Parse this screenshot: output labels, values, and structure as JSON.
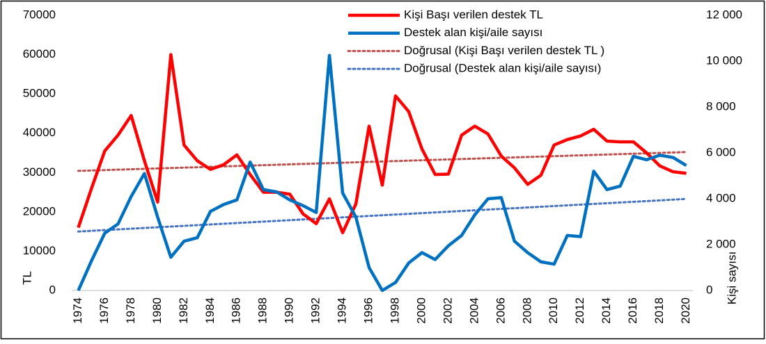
{
  "chart_data": {
    "type": "line",
    "y_label": "TL",
    "y2_label": "Kişi sayısı",
    "x": [
      1974,
      1975,
      1976,
      1977,
      1978,
      1979,
      1980,
      1981,
      1982,
      1983,
      1984,
      1985,
      1986,
      1987,
      1988,
      1989,
      1990,
      1991,
      1992,
      1993,
      1994,
      1995,
      1996,
      1997,
      1998,
      1999,
      2000,
      2001,
      2002,
      2003,
      2004,
      2005,
      2006,
      2007,
      2008,
      2009,
      2010,
      2011,
      2012,
      2013,
      2014,
      2015,
      2016,
      2017,
      2018,
      2019,
      2020
    ],
    "xlim": [
      1973.5,
      2020.5
    ],
    "xticks": [
      1974,
      1976,
      1978,
      1980,
      1982,
      1984,
      1986,
      1988,
      1990,
      1992,
      1994,
      1996,
      1998,
      2000,
      2002,
      2004,
      2006,
      2008,
      2010,
      2012,
      2014,
      2016,
      2018,
      2020
    ],
    "ylim": [
      0,
      70000
    ],
    "yticks": [
      0,
      10000,
      20000,
      30000,
      40000,
      50000,
      60000,
      70000
    ],
    "y2lim": [
      0,
      12000
    ],
    "y2ticks": [
      0,
      {
        "value": 2000,
        "label": "2 000"
      },
      {
        "value": 4000,
        "label": "4 000"
      },
      {
        "value": 6000,
        "label": "6 000"
      },
      {
        "value": 8000,
        "label": "8 000"
      },
      {
        "value": 10000,
        "label": "10 000"
      },
      {
        "value": 12000,
        "label": "12 000"
      }
    ],
    "series": [
      {
        "name": "Kişi Başı verilen destek TL",
        "color": "#ff0000",
        "values": [
          16000,
          26000,
          35500,
          39500,
          44500,
          33000,
          22500,
          60000,
          37000,
          33000,
          30800,
          32000,
          34500,
          29500,
          25000,
          25000,
          24500,
          19500,
          17000,
          23300,
          14700,
          22000,
          41800,
          26800,
          49500,
          45500,
          36000,
          29500,
          29600,
          39500,
          41800,
          39800,
          34200,
          31200,
          27000,
          29300,
          37000,
          38400,
          39300,
          41000,
          38000,
          37800,
          37800,
          35000,
          31700,
          30200,
          29800
        ]
      },
      {
        "name": "Destek alan kişi/aile sayısı",
        "color": "#0070c0",
        "axis": "y2",
        "values": [
          0,
          1300,
          2500,
          2900,
          4100,
          5100,
          3200,
          1450,
          2150,
          2300,
          3450,
          3750,
          3950,
          5600,
          4400,
          4300,
          3950,
          3700,
          3400,
          10250,
          4250,
          3200,
          1000,
          0,
          350,
          1200,
          1650,
          1350,
          1950,
          2400,
          3300,
          4000,
          4050,
          2150,
          1650,
          1250,
          1150,
          2400,
          2350,
          5200,
          4400,
          4550,
          5850,
          5700,
          5900,
          5800,
          5450
        ]
      }
    ],
    "trendlines": [
      {
        "name": "Doğrusal (Kişi Başı verilen destek TL )",
        "color": "#c0504d",
        "of": 0
      },
      {
        "name": "Doğrusal (Destek alan kişi/aile sayısı)",
        "color": "#4472c4",
        "of": 1
      }
    ],
    "legend": "top"
  }
}
